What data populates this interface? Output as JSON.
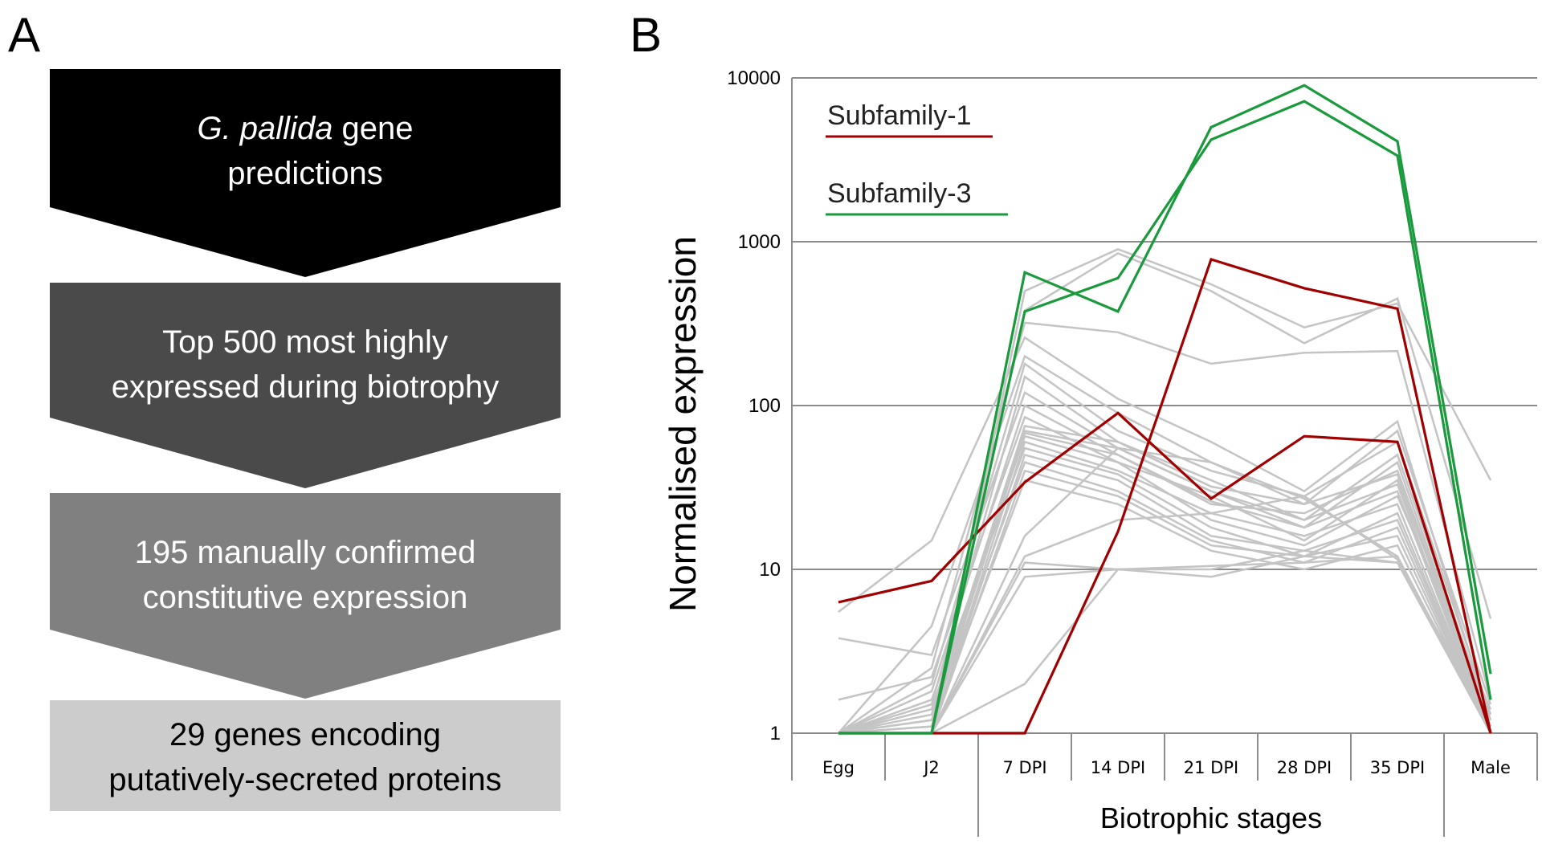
{
  "panels": {
    "a_label": "A",
    "b_label": "B"
  },
  "workflow": {
    "steps": [
      {
        "line1_italic": "G. pallida",
        "line1_rest": " gene",
        "line2": "predictions",
        "fill": "#000000",
        "text_color": "#ffffff"
      },
      {
        "line1": "Top 500 most highly",
        "line2": "expressed during biotrophy",
        "fill": "#4a4a4a",
        "text_color": "#ffffff"
      },
      {
        "line1": "195 manually confirmed",
        "line2": "constitutive expression",
        "fill": "#808080",
        "text_color": "#ffffff"
      },
      {
        "line1": "29 genes encoding",
        "line2": "putatively-secreted proteins",
        "fill": "#cccccc",
        "text_color": "#000000"
      }
    ]
  },
  "chart_data": {
    "type": "line",
    "ylabel": "Normalised expression",
    "xgroup_label": "Biotrophic stages",
    "categories": [
      "Egg",
      "J2",
      "7 DPI",
      "14 DPI",
      "21 DPI",
      "28 DPI",
      "35 DPI",
      "Male"
    ],
    "yscale": "log",
    "ylim": [
      1,
      10000
    ],
    "yticks": [
      "1",
      "10",
      "100",
      "1000",
      "10000"
    ],
    "grid": true,
    "legend": [
      {
        "name": "Subfamily-1",
        "color": "#a00000"
      },
      {
        "name": "Subfamily-3",
        "color": "#1a9a3c"
      }
    ],
    "colors": {
      "other": "#c4c4c4",
      "subfamily1": "#a00000",
      "subfamily3": "#1a9a3c",
      "grid": "#8c8c8c"
    },
    "series": [
      {
        "group": "other",
        "values": [
          1,
          1,
          500,
          900,
          550,
          300,
          420,
          35
        ]
      },
      {
        "group": "other",
        "values": [
          1,
          1,
          380,
          850,
          500,
          240,
          450,
          5
        ]
      },
      {
        "group": "other",
        "values": [
          1,
          2.5,
          320,
          280,
          180,
          210,
          215,
          1.6
        ]
      },
      {
        "group": "other",
        "values": [
          5.5,
          15,
          260,
          110,
          60,
          30,
          80,
          1.2
        ]
      },
      {
        "group": "other",
        "values": [
          1,
          4.5,
          200,
          90,
          45,
          25,
          70,
          1.5
        ]
      },
      {
        "group": "other",
        "values": [
          1,
          2,
          180,
          70,
          40,
          28,
          60,
          1.3
        ]
      },
      {
        "group": "other",
        "values": [
          1,
          1.5,
          150,
          60,
          35,
          20,
          50,
          1.2
        ]
      },
      {
        "group": "other",
        "values": [
          3.8,
          3,
          120,
          55,
          30,
          18,
          45,
          1.1
        ]
      },
      {
        "group": "other",
        "values": [
          1,
          1.8,
          100,
          50,
          25,
          22,
          40,
          1.1
        ]
      },
      {
        "group": "other",
        "values": [
          1.6,
          2.2,
          85,
          45,
          28,
          15,
          35,
          1.2
        ]
      },
      {
        "group": "other",
        "values": [
          1,
          1.3,
          75,
          60,
          32,
          25,
          38,
          1
        ]
      },
      {
        "group": "other",
        "values": [
          1,
          1.2,
          70,
          55,
          30,
          20,
          33,
          1
        ]
      },
      {
        "group": "other",
        "values": [
          1,
          1.1,
          68,
          50,
          26,
          18,
          30,
          1
        ]
      },
      {
        "group": "other",
        "values": [
          1,
          1.4,
          65,
          45,
          20,
          14,
          28,
          1.4
        ]
      },
      {
        "group": "other",
        "values": [
          1,
          1,
          60,
          40,
          22,
          16,
          25,
          1
        ]
      },
      {
        "group": "other",
        "values": [
          1,
          1.6,
          55,
          38,
          18,
          12,
          22,
          1
        ]
      },
      {
        "group": "other",
        "values": [
          1,
          1,
          50,
          35,
          16,
          13,
          20,
          1
        ]
      },
      {
        "group": "other",
        "values": [
          1,
          1.2,
          45,
          30,
          15,
          11,
          18,
          1
        ]
      },
      {
        "group": "other",
        "values": [
          1,
          1,
          40,
          28,
          14,
          12,
          16,
          1
        ]
      },
      {
        "group": "other",
        "values": [
          1,
          1.1,
          35,
          25,
          13,
          10,
          14,
          1
        ]
      },
      {
        "group": "other",
        "values": [
          1,
          1,
          16,
          55,
          45,
          27,
          12,
          1
        ]
      },
      {
        "group": "other",
        "values": [
          1,
          1,
          12,
          20,
          22,
          28,
          11.5,
          1.1
        ]
      },
      {
        "group": "other",
        "values": [
          1,
          1,
          9,
          10,
          9,
          12,
          11,
          1
        ]
      },
      {
        "group": "other",
        "values": [
          1,
          1,
          2,
          10,
          10.5,
          11,
          12,
          1
        ]
      },
      {
        "group": "other",
        "values": [
          1,
          1,
          11,
          10,
          10,
          13,
          11,
          1.1
        ]
      },
      {
        "group": "subfamily1",
        "name": "Subfamily-1",
        "values": [
          6.3,
          8.5,
          34,
          90,
          27,
          65,
          60,
          1
        ]
      },
      {
        "group": "subfamily1",
        "name": "Subfamily-1",
        "values": [
          1,
          1,
          1,
          17,
          780,
          520,
          390,
          1
        ]
      },
      {
        "group": "subfamily3",
        "name": "Subfamily-3",
        "values": [
          1,
          1,
          650,
          375,
          5000,
          9000,
          4100,
          2.3
        ]
      },
      {
        "group": "subfamily3",
        "name": "Subfamily-3",
        "values": [
          1,
          1,
          375,
          600,
          4200,
          7200,
          3350,
          1.6
        ]
      }
    ]
  }
}
